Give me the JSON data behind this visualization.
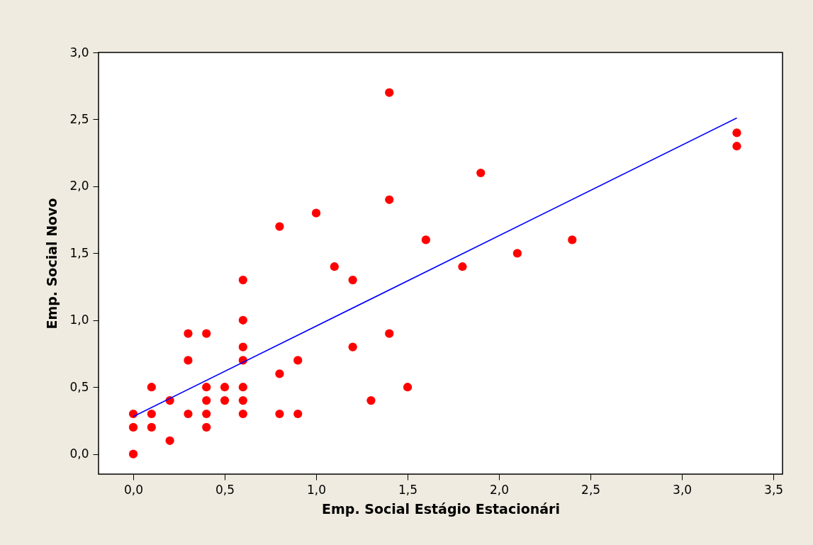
{
  "chart_data": {
    "type": "scatter",
    "xlabel": "Emp. Social Estágio Estacionári",
    "ylabel": "Emp. Social Novo",
    "xlim": [
      -0.19,
      3.55
    ],
    "ylim": [
      -0.15,
      3.0
    ],
    "xticks": [
      {
        "value": 0,
        "label": "0,0"
      },
      {
        "value": 0.5,
        "label": "0,5"
      },
      {
        "value": 1,
        "label": "1,0"
      },
      {
        "value": 1.5,
        "label": "1,5"
      },
      {
        "value": 2,
        "label": "2,0"
      },
      {
        "value": 2.5,
        "label": "2,5"
      },
      {
        "value": 3,
        "label": "3,0"
      },
      {
        "value": 3.5,
        "label": "3,5"
      }
    ],
    "yticks": [
      {
        "value": 0,
        "label": "0,0"
      },
      {
        "value": 0.5,
        "label": "0,5"
      },
      {
        "value": 1,
        "label": "1,0"
      },
      {
        "value": 1.5,
        "label": "1,5"
      },
      {
        "value": 2,
        "label": "2,0"
      },
      {
        "value": 2.5,
        "label": "2,5"
      },
      {
        "value": 3,
        "label": "3,0"
      }
    ],
    "grid": false,
    "marker": "circle",
    "series": [
      {
        "color": "#ff0000",
        "x": [
          0,
          0,
          0,
          0.1,
          0.1,
          0.1,
          0.2,
          0.2,
          0.3,
          0.3,
          0.3,
          0.4,
          0.4,
          0.4,
          0.4,
          0.4,
          0.5,
          0.5,
          0.6,
          0.6,
          0.6,
          0.6,
          0.6,
          0.6,
          0.6,
          0.8,
          0.8,
          0.8,
          0.9,
          0.9,
          1.0,
          1.1,
          1.2,
          1.2,
          1.3,
          1.4,
          1.4,
          1.4,
          1.5,
          1.6,
          1.8,
          1.9,
          2.1,
          2.4,
          3.3,
          3.3
        ],
        "values": [
          0.3,
          0.2,
          0,
          0.5,
          0.3,
          0.2,
          0.4,
          0.1,
          0.9,
          0.7,
          0.3,
          0.9,
          0.5,
          0.4,
          0.3,
          0.2,
          0.5,
          0.4,
          1.3,
          1.0,
          0.8,
          0.7,
          0.5,
          0.4,
          0.3,
          1.7,
          0.6,
          0.3,
          0.7,
          0.3,
          1.8,
          1.4,
          1.3,
          0.8,
          0.4,
          2.7,
          1.9,
          0.9,
          0.5,
          1.6,
          1.4,
          2.1,
          1.5,
          1.6,
          2.4,
          2.3
        ]
      },
      {
        "type": "line",
        "marker": "none",
        "line_style": "solid",
        "color": "#0000ff",
        "x": [
          0,
          3.3
        ],
        "values": [
          0.28,
          2.51
        ]
      }
    ]
  }
}
